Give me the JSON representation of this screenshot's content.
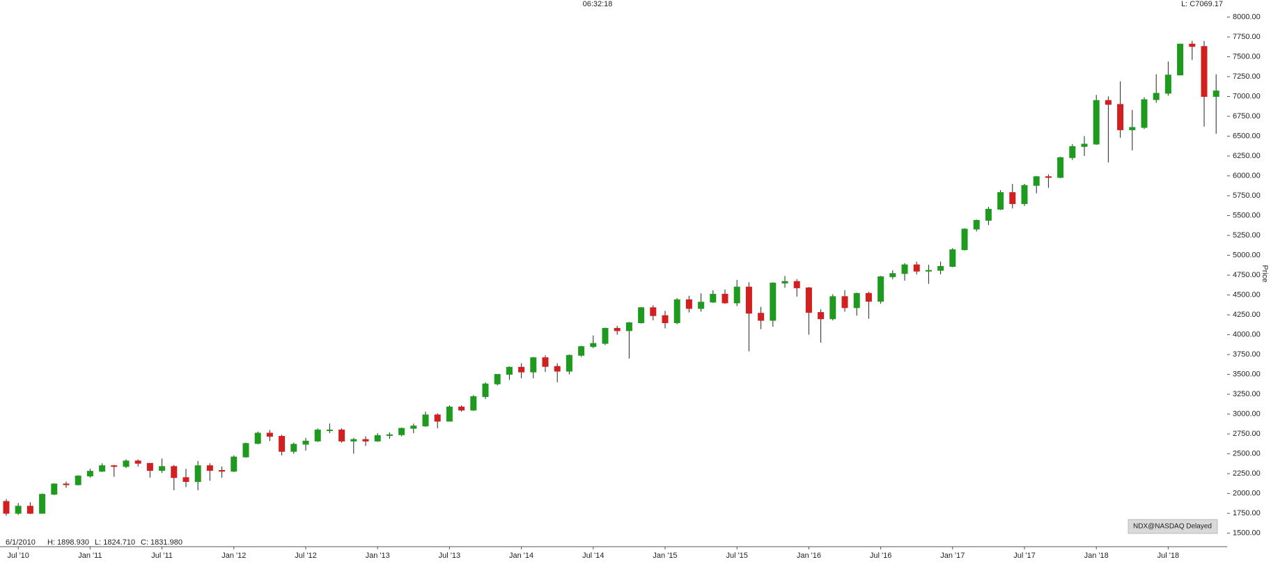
{
  "chart_data": {
    "type": "candlestick",
    "x": [
      "2010-06",
      "2010-07",
      "2010-08",
      "2010-09",
      "2010-10",
      "2010-11",
      "2010-12",
      "2011-01",
      "2011-02",
      "2011-03",
      "2011-04",
      "2011-05",
      "2011-06",
      "2011-07",
      "2011-08",
      "2011-09",
      "2011-10",
      "2011-11",
      "2011-12",
      "2012-01",
      "2012-02",
      "2012-03",
      "2012-04",
      "2012-05",
      "2012-06",
      "2012-07",
      "2012-08",
      "2012-09",
      "2012-10",
      "2012-11",
      "2012-12",
      "2013-01",
      "2013-02",
      "2013-03",
      "2013-04",
      "2013-05",
      "2013-06",
      "2013-07",
      "2013-08",
      "2013-09",
      "2013-10",
      "2013-11",
      "2013-12",
      "2014-01",
      "2014-02",
      "2014-03",
      "2014-04",
      "2014-05",
      "2014-06",
      "2014-07",
      "2014-08",
      "2014-09",
      "2014-10",
      "2014-11",
      "2014-12",
      "2015-01",
      "2015-02",
      "2015-03",
      "2015-04",
      "2015-05",
      "2015-06",
      "2015-07",
      "2015-08",
      "2015-09",
      "2015-10",
      "2015-11",
      "2015-12",
      "2016-01",
      "2016-02",
      "2016-03",
      "2016-04",
      "2016-05",
      "2016-06",
      "2016-07",
      "2016-08",
      "2016-09",
      "2016-10",
      "2016-11",
      "2016-12",
      "2017-01",
      "2017-02",
      "2017-03",
      "2017-04",
      "2017-05",
      "2017-06",
      "2017-07",
      "2017-08",
      "2017-09",
      "2017-10",
      "2017-11",
      "2017-12",
      "2018-01",
      "2018-02",
      "2018-03",
      "2018-04",
      "2018-05",
      "2018-06",
      "2018-07",
      "2018-08",
      "2018-09",
      "2018-10",
      "2018-11"
    ],
    "open": [
      1900,
      1750,
      1840,
      1750,
      1990,
      2120,
      2110,
      2220,
      2280,
      2350,
      2340,
      2410,
      2380,
      2290,
      2340,
      2200,
      2150,
      2350,
      2290,
      2280,
      2460,
      2630,
      2760,
      2720,
      2530,
      2620,
      2660,
      2800,
      2800,
      2660,
      2680,
      2660,
      2730,
      2740,
      2820,
      2850,
      2990,
      2910,
      3090,
      3050,
      3220,
      3380,
      3500,
      3590,
      3530,
      3710,
      3600,
      3540,
      3740,
      3850,
      3890,
      4080,
      4050,
      4150,
      4340,
      4240,
      4150,
      4440,
      4330,
      4410,
      4510,
      4400,
      4600,
      4270,
      4180,
      4650,
      4670,
      4590,
      4280,
      4200,
      4480,
      4340,
      4520,
      4420,
      4730,
      4770,
      4880,
      4800,
      4810,
      4860,
      5070,
      5330,
      5440,
      5580,
      5790,
      5650,
      5880,
      5990,
      5980,
      6230,
      6370,
      6400,
      6950,
      6900,
      6580,
      6610,
      6960,
      7040,
      7270,
      7660,
      7630,
      7000
    ],
    "high": [
      1930,
      1880,
      1890,
      2000,
      2130,
      2150,
      2230,
      2310,
      2380,
      2360,
      2430,
      2430,
      2380,
      2440,
      2360,
      2310,
      2410,
      2380,
      2340,
      2480,
      2640,
      2780,
      2800,
      2740,
      2640,
      2700,
      2820,
      2880,
      2820,
      2700,
      2720,
      2760,
      2770,
      2830,
      2880,
      3030,
      3010,
      3110,
      3110,
      3240,
      3400,
      3500,
      3600,
      3640,
      3720,
      3740,
      3640,
      3750,
      3860,
      3990,
      4090,
      4110,
      4160,
      4350,
      4370,
      4300,
      4460,
      4490,
      4520,
      4560,
      4570,
      4690,
      4660,
      4350,
      4660,
      4740,
      4700,
      4600,
      4320,
      4510,
      4560,
      4530,
      4540,
      4740,
      4810,
      4900,
      4920,
      4880,
      4920,
      5090,
      5340,
      5450,
      5610,
      5820,
      5900,
      5900,
      6000,
      6020,
      6240,
      6400,
      6500,
      7020,
      7000,
      7190,
      6830,
      6990,
      7280,
      7440,
      7660,
      7700,
      7700,
      7280
    ],
    "low": [
      1720,
      1730,
      1740,
      1750,
      1980,
      2070,
      2100,
      2200,
      2270,
      2210,
      2320,
      2340,
      2200,
      2260,
      2040,
      2080,
      2040,
      2160,
      2200,
      2270,
      2450,
      2620,
      2660,
      2480,
      2500,
      2540,
      2650,
      2760,
      2640,
      2500,
      2600,
      2650,
      2690,
      2720,
      2760,
      2840,
      2820,
      2910,
      3030,
      3040,
      3190,
      3360,
      3430,
      3450,
      3450,
      3530,
      3400,
      3500,
      3720,
      3830,
      3870,
      4000,
      3700,
      4140,
      4180,
      4080,
      4130,
      4280,
      4290,
      4400,
      4390,
      4360,
      3790,
      4070,
      4100,
      4590,
      4480,
      4000,
      3900,
      4180,
      4290,
      4240,
      4200,
      4390,
      4700,
      4680,
      4760,
      4640,
      4760,
      4850,
      5060,
      5300,
      5380,
      5570,
      5590,
      5620,
      5780,
      5850,
      5970,
      6200,
      6250,
      6390,
      6170,
      6480,
      6320,
      6590,
      6920,
      7010,
      7270,
      7460,
      6620,
      6530
    ],
    "close": [
      1750,
      1840,
      1750,
      1990,
      2120,
      2110,
      2220,
      2280,
      2350,
      2340,
      2410,
      2380,
      2290,
      2340,
      2200,
      2150,
      2350,
      2290,
      2280,
      2460,
      2630,
      2760,
      2720,
      2530,
      2620,
      2660,
      2800,
      2800,
      2660,
      2680,
      2660,
      2730,
      2740,
      2820,
      2850,
      2990,
      2910,
      3090,
      3050,
      3220,
      3380,
      3500,
      3590,
      3530,
      3710,
      3600,
      3540,
      3740,
      3850,
      3890,
      4080,
      4050,
      4150,
      4340,
      4240,
      4150,
      4440,
      4330,
      4410,
      4510,
      4400,
      4600,
      4270,
      4180,
      4650,
      4670,
      4590,
      4280,
      4200,
      4480,
      4340,
      4520,
      4420,
      4730,
      4770,
      4880,
      4800,
      4810,
      4860,
      5070,
      5330,
      5440,
      5580,
      5790,
      5650,
      5880,
      5990,
      5980,
      6230,
      6370,
      6400,
      6950,
      6900,
      6580,
      6610,
      6960,
      7040,
      7270,
      7660,
      7630,
      7000,
      7070
    ],
    "up_color": "#1e9b1e",
    "down_color": "#d21f1f",
    "y_label": "Price",
    "ylim": [
      1330,
      8215
    ],
    "yticks": [
      {
        "value": 1500,
        "label": "1500.00"
      },
      {
        "value": 1750,
        "label": "1750.00"
      },
      {
        "value": 2000,
        "label": "2000.00"
      },
      {
        "value": 2250,
        "label": "2250.00"
      },
      {
        "value": 2500,
        "label": "2500.00"
      },
      {
        "value": 2750,
        "label": "2750.00"
      },
      {
        "value": 3000,
        "label": "3000.00"
      },
      {
        "value": 3250,
        "label": "3250.00"
      },
      {
        "value": 3500,
        "label": "3500.00"
      },
      {
        "value": 3750,
        "label": "3750.00"
      },
      {
        "value": 4000,
        "label": "4000.00"
      },
      {
        "value": 4250,
        "label": "4250.00"
      },
      {
        "value": 4500,
        "label": "4500.00"
      },
      {
        "value": 4750,
        "label": "4750.00"
      },
      {
        "value": 5000,
        "label": "5000.00"
      },
      {
        "value": 5250,
        "label": "5250.00"
      },
      {
        "value": 5500,
        "label": "5500.00"
      },
      {
        "value": 5750,
        "label": "5750.00"
      },
      {
        "value": 6000,
        "label": "6000.00"
      },
      {
        "value": 6250,
        "label": "6250.00"
      },
      {
        "value": 6500,
        "label": "6500.00"
      },
      {
        "value": 6750,
        "label": "6750.00"
      },
      {
        "value": 7000,
        "label": "7000.00"
      },
      {
        "value": 7250,
        "label": "7250.00"
      },
      {
        "value": 7500,
        "label": "7500.00"
      },
      {
        "value": 7750,
        "label": "7750.00"
      },
      {
        "value": 8000,
        "label": "8000.00"
      }
    ],
    "xticks": [
      {
        "value": "2010-07",
        "label": "Jul '10"
      },
      {
        "value": "2011-01",
        "label": "Jan '11"
      },
      {
        "value": "2011-07",
        "label": "Jul '11"
      },
      {
        "value": "2012-01",
        "label": "Jan '12"
      },
      {
        "value": "2012-07",
        "label": "Jul '12"
      },
      {
        "value": "2013-01",
        "label": "Jan '13"
      },
      {
        "value": "2013-07",
        "label": "Jul '13"
      },
      {
        "value": "2014-01",
        "label": "Jan '14"
      },
      {
        "value": "2014-07",
        "label": "Jul '14"
      },
      {
        "value": "2015-01",
        "label": "Jan '15"
      },
      {
        "value": "2015-07",
        "label": "Jul '15"
      },
      {
        "value": "2016-01",
        "label": "Jan '16"
      },
      {
        "value": "2016-07",
        "label": "Jul '16"
      },
      {
        "value": "2017-01",
        "label": "Jan '17"
      },
      {
        "value": "2017-07",
        "label": "Jul '17"
      },
      {
        "value": "2018-01",
        "label": "Jan '18"
      },
      {
        "value": "2018-07",
        "label": "Jul '18"
      }
    ]
  },
  "header": {
    "time": "06:32:18",
    "last": "L: C7069.17"
  },
  "info": {
    "date": "6/1/2010",
    "high": "H: 1898.930",
    "low": "L: 1824.710",
    "close": "C: 1831.980"
  },
  "source": "NDX@NASDAQ Delayed"
}
